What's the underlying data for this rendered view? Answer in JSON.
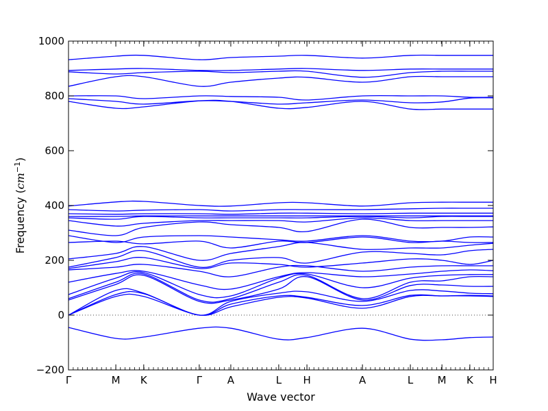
{
  "chart_data": {
    "type": "line",
    "xlabel": "Wave vector",
    "ylabel_prefix": "Frequency (",
    "ylabel_unit": "cm",
    "ylabel_exp": "−1",
    "ylabel_suffix": ")",
    "ylim": [
      -200,
      1000
    ],
    "yticks": [
      -200,
      0,
      200,
      400,
      600,
      800,
      1000
    ],
    "x_range": [
      0,
      14
    ],
    "xticks": [
      {
        "label": "Γ",
        "x": 0
      },
      {
        "label": "M",
        "x": 1.56
      },
      {
        "label": "K",
        "x": 2.48
      },
      {
        "label": "Γ",
        "x": 4.31
      },
      {
        "label": "A",
        "x": 5.35
      },
      {
        "label": "L",
        "x": 6.93
      },
      {
        "label": "H",
        "x": 7.86
      },
      {
        "label": "A",
        "x": 9.69
      },
      {
        "label": "L",
        "x": 11.27
      },
      {
        "label": "M",
        "x": 12.31
      },
      {
        "label": "K",
        "x": 13.23
      },
      {
        "label": "H",
        "x": 14.0
      }
    ],
    "zero_line": "dotted",
    "line_color": "#0000ff",
    "series": [
      {
        "values": [
          -45,
          -85,
          -80,
          -48,
          -48,
          -88,
          -82,
          -48,
          -88,
          -90,
          -82,
          -80
        ]
      },
      {
        "values": [
          0,
          68,
          68,
          0,
          30,
          65,
          62,
          25,
          68,
          70,
          70,
          68
        ]
      },
      {
        "values": [
          0,
          75,
          78,
          0,
          40,
          70,
          65,
          35,
          72,
          70,
          72,
          70
        ]
      },
      {
        "values": [
          0,
          90,
          80,
          0,
          50,
          80,
          85,
          50,
          90,
          88,
          80,
          78
        ]
      },
      {
        "values": [
          55,
          112,
          145,
          50,
          55,
          95,
          140,
          55,
          108,
          110,
          105,
          105
        ]
      },
      {
        "values": [
          60,
          120,
          150,
          55,
          60,
          120,
          145,
          60,
          120,
          125,
          140,
          140
        ]
      },
      {
        "values": [
          75,
          135,
          155,
          75,
          70,
          135,
          150,
          100,
          135,
          145,
          148,
          148
        ]
      },
      {
        "values": [
          120,
          152,
          160,
          110,
          95,
          140,
          155,
          140,
          150,
          160,
          165,
          162
        ]
      },
      {
        "values": [
          165,
          175,
          185,
          160,
          140,
          175,
          180,
          160,
          175,
          180,
          180,
          180
        ]
      },
      {
        "values": [
          170,
          195,
          210,
          170,
          190,
          185,
          175,
          190,
          205,
          200,
          185,
          200
        ]
      },
      {
        "values": [
          175,
          210,
          235,
          175,
          200,
          210,
          190,
          230,
          225,
          220,
          235,
          240
        ]
      },
      {
        "values": [
          205,
          225,
          250,
          200,
          225,
          250,
          265,
          240,
          245,
          245,
          255,
          262
        ]
      },
      {
        "values": [
          265,
          270,
          260,
          270,
          245,
          270,
          265,
          285,
          265,
          270,
          265,
          265
        ]
      },
      {
        "values": [
          290,
          265,
          285,
          290,
          285,
          275,
          270,
          290,
          270,
          270,
          285,
          285
        ]
      },
      {
        "values": [
          310,
          290,
          320,
          340,
          330,
          320,
          305,
          350,
          320,
          320,
          320,
          322
        ]
      },
      {
        "values": [
          345,
          325,
          335,
          345,
          345,
          345,
          340,
          355,
          345,
          345,
          345,
          345
        ]
      },
      {
        "values": [
          355,
          350,
          360,
          355,
          355,
          355,
          355,
          360,
          355,
          360,
          360,
          360
        ]
      },
      {
        "values": [
          360,
          360,
          362,
          362,
          362,
          362,
          362,
          362,
          362,
          362,
          362,
          362
        ]
      },
      {
        "values": [
          370,
          368,
          370,
          370,
          368,
          372,
          372,
          370,
          372,
          372,
          372,
          372
        ]
      },
      {
        "values": [
          385,
          380,
          383,
          385,
          380,
          385,
          385,
          385,
          388,
          390,
          390,
          390
        ]
      },
      {
        "values": [
          398,
          413,
          415,
          400,
          398,
          410,
          410,
          398,
          410,
          412,
          412,
          412
        ]
      },
      {
        "values": [
          780,
          755,
          760,
          782,
          780,
          755,
          758,
          780,
          752,
          752,
          752,
          752
        ]
      },
      {
        "values": [
          790,
          780,
          770,
          782,
          780,
          770,
          775,
          785,
          775,
          778,
          792,
          793
        ]
      },
      {
        "values": [
          800,
          800,
          790,
          800,
          798,
          795,
          785,
          800,
          800,
          800,
          795,
          795
        ]
      },
      {
        "values": [
          835,
          870,
          870,
          835,
          850,
          865,
          868,
          850,
          870,
          870,
          870,
          870
        ]
      },
      {
        "values": [
          888,
          880,
          885,
          890,
          885,
          890,
          890,
          868,
          885,
          890,
          890,
          890
        ]
      },
      {
        "values": [
          893,
          898,
          900,
          893,
          893,
          898,
          900,
          893,
          898,
          898,
          898,
          898
        ]
      },
      {
        "values": [
          932,
          945,
          948,
          932,
          940,
          945,
          948,
          938,
          948,
          948,
          948,
          948
        ]
      }
    ]
  }
}
